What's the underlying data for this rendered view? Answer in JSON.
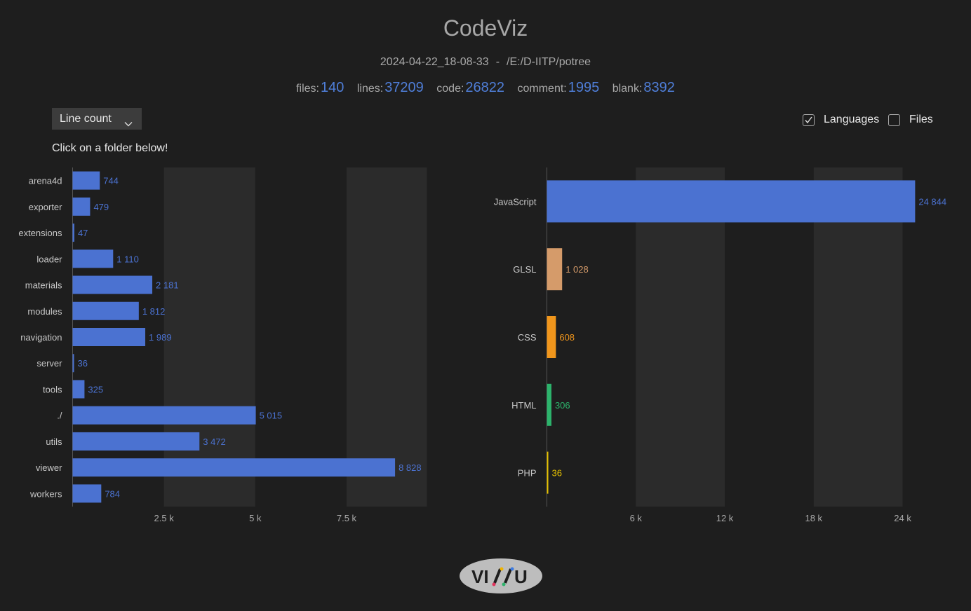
{
  "header": {
    "title": "CodeViz",
    "timestamp": "2024-04-22_18-08-33",
    "separator": "-",
    "path": "/E:/D-IITP/potree"
  },
  "stats": [
    {
      "label": "files:",
      "value": "140"
    },
    {
      "label": "lines:",
      "value": "37209"
    },
    {
      "label": "code:",
      "value": "26822"
    },
    {
      "label": "comment:",
      "value": "1995"
    },
    {
      "label": "blank:",
      "value": "8392"
    }
  ],
  "controls": {
    "dropdown_label": "Line count",
    "hint": "Click on a folder below!",
    "languages_label": "Languages",
    "languages_checked": true,
    "files_label": "Files",
    "files_checked": false
  },
  "chart_data": [
    {
      "type": "bar",
      "orientation": "horizontal",
      "categories": [
        "arena4d",
        "exporter",
        "extensions",
        "loader",
        "materials",
        "modules",
        "navigation",
        "server",
        "tools",
        "./",
        "utils",
        "viewer",
        "workers"
      ],
      "values": [
        744,
        479,
        47,
        1110,
        2181,
        1812,
        1989,
        36,
        325,
        5015,
        3472,
        8828,
        784
      ],
      "value_labels": [
        "744",
        "479",
        "47",
        "1 110",
        "2 181",
        "1 812",
        "1 989",
        "36",
        "325",
        "5 015",
        "3 472",
        "8 828",
        "784"
      ],
      "xticks": [
        2500,
        5000,
        7500
      ],
      "xtick_labels": [
        "2.5 k",
        "5 k",
        "7.5 k"
      ],
      "xlim": [
        0,
        9700
      ],
      "color": "#4b72d1"
    },
    {
      "type": "bar",
      "orientation": "horizontal",
      "categories": [
        "JavaScript",
        "GLSL",
        "CSS",
        "HTML",
        "PHP"
      ],
      "values": [
        24844,
        1028,
        608,
        306,
        36
      ],
      "value_labels": [
        "24 844",
        "1 028",
        "608",
        "306",
        "36"
      ],
      "colors": [
        "#4b72d1",
        "#d59b6a",
        "#f0961c",
        "#2cb36b",
        "#e6c100"
      ],
      "xticks": [
        6000,
        12000,
        18000,
        24000
      ],
      "xtick_labels": [
        "6 k",
        "12 k",
        "18 k",
        "24 k"
      ],
      "xlim": [
        0,
        24850
      ]
    }
  ],
  "logo": {
    "text_left": "VI",
    "text_right": "U"
  }
}
